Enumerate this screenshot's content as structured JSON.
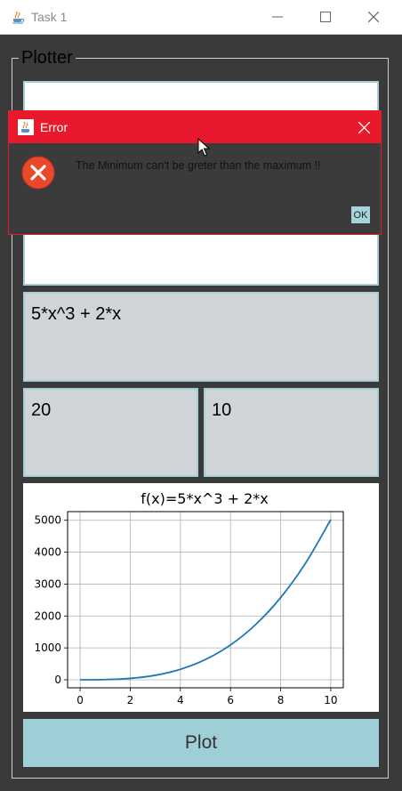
{
  "window": {
    "title": "Task 1",
    "icon": "java-cup-icon"
  },
  "plotter": {
    "legend": "Plotter",
    "function_value": "5*x^3 + 2*x",
    "min_value": "20",
    "max_value": "10",
    "plot_button_label": "Plot"
  },
  "chart_data": {
    "type": "line",
    "title": "f(x)=5*x^3 + 2*x",
    "xlabel": "",
    "ylabel": "",
    "xlim": [
      -0.5,
      10.5
    ],
    "ylim": [
      -251,
      5271
    ],
    "xticks": [
      0,
      2,
      4,
      6,
      8,
      10
    ],
    "yticks": [
      0,
      1000,
      2000,
      3000,
      4000,
      5000
    ],
    "xtick_labels": [
      "0",
      "2",
      "4",
      "6",
      "8",
      "10"
    ],
    "ytick_labels": [
      "0",
      "1000",
      "2000",
      "3000",
      "4000",
      "5000"
    ],
    "grid": true,
    "line_color": "#1f77b4",
    "series": [
      {
        "x": [
          0,
          1,
          2,
          3,
          4,
          5,
          6,
          7,
          8,
          9,
          10
        ],
        "y": [
          0,
          7,
          44,
          141,
          328,
          635,
          1092,
          1729,
          2576,
          3663,
          5020
        ]
      }
    ]
  },
  "error_dialog": {
    "title": "Error",
    "message": "The Minimum can't be greter than the maximum !!",
    "ok_label": "OK",
    "accent_color": "#e8192c"
  }
}
